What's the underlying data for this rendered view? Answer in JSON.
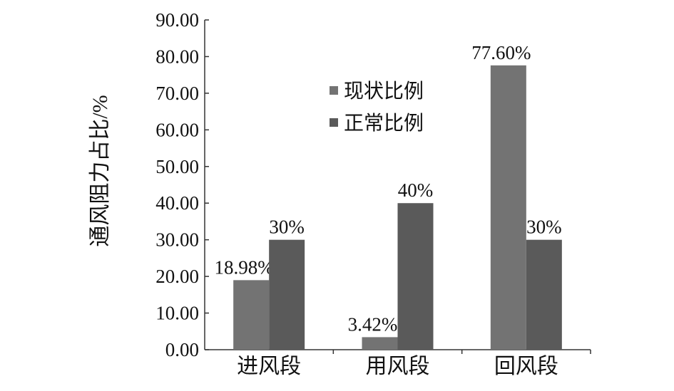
{
  "chart_data": {
    "type": "bar",
    "y_label": "通风阻力占比/%",
    "categories": [
      "进风段",
      "用风段",
      "回风段"
    ],
    "series": [
      {
        "name": "现状比例",
        "color": "#737373",
        "values": [
          18.98,
          3.42,
          77.6
        ],
        "value_labels": [
          "18.98%",
          "3.42%",
          "77.60%"
        ]
      },
      {
        "name": "正常比例",
        "color": "#5a5a5a",
        "values": [
          30,
          40,
          30
        ],
        "value_labels": [
          "30%",
          "40%",
          "30%"
        ]
      }
    ],
    "ylim": [
      0,
      90
    ],
    "yticks": [
      {
        "value": 0,
        "label": "0.00"
      },
      {
        "value": 10,
        "label": "10.00"
      },
      {
        "value": 20,
        "label": "20.00"
      },
      {
        "value": 30,
        "label": "30.00"
      },
      {
        "value": 40,
        "label": "40.00"
      },
      {
        "value": 50,
        "label": "50.00"
      },
      {
        "value": 60,
        "label": "60.00"
      },
      {
        "value": 70,
        "label": "70.00"
      },
      {
        "value": 80,
        "label": "80.00"
      },
      {
        "value": 90,
        "label": "90.00"
      }
    ],
    "grid": false,
    "legend": "top-center"
  }
}
